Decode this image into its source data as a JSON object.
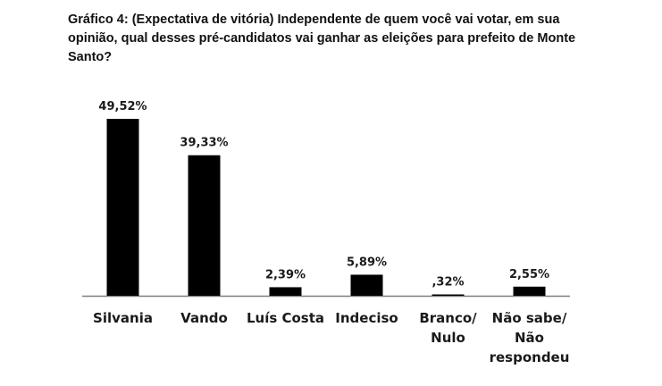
{
  "title": "Gráfico 4: (Expectativa de vitória) Independente de quem você vai votar, em sua opinião, qual desses pré-candidatos vai ganhar as eleições para prefeito de Monte Santo?",
  "chart_data": {
    "type": "bar",
    "categories": [
      [
        "Silvania"
      ],
      [
        "Vando"
      ],
      [
        "Luís Costa"
      ],
      [
        "Indeciso"
      ],
      [
        "Branco/",
        "Nulo"
      ],
      [
        "Não sabe/",
        "Não",
        "respondeu"
      ]
    ],
    "values": [
      49.52,
      39.33,
      2.39,
      5.89,
      0.32,
      2.55
    ],
    "value_labels": [
      "49,52%",
      "39,33%",
      "2,39%",
      "5,89%",
      ",32%",
      "2,55%"
    ],
    "ylim": [
      0,
      50
    ],
    "grid": false,
    "legend": "none",
    "bar_color": "#000000",
    "axis_color": "#7f7f7f"
  }
}
